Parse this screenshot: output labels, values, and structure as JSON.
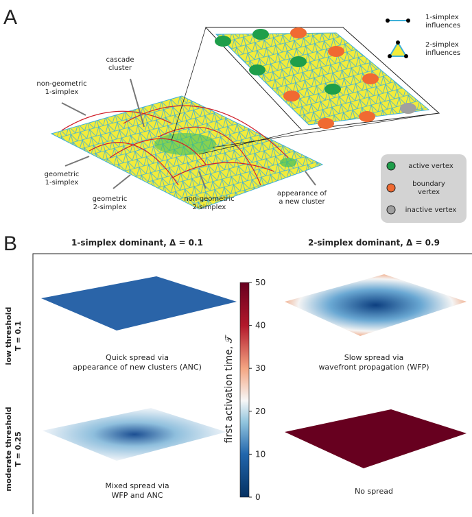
{
  "panel_a": {
    "label": "A",
    "influences": [
      {
        "lines": [
          "1-simplex",
          "influences"
        ]
      },
      {
        "lines": [
          "2-simplex",
          "influences"
        ]
      }
    ],
    "annotations": [
      {
        "lines": [
          "cascade",
          "cluster"
        ]
      },
      {
        "lines": [
          "non-geometric",
          "1-simplex"
        ]
      },
      {
        "lines": [
          "geometric",
          "1-simplex"
        ]
      },
      {
        "lines": [
          "geometric",
          "2-simplex"
        ]
      },
      {
        "lines": [
          "non-geometric",
          "2-simplex"
        ]
      },
      {
        "lines": [
          "appearance of",
          "a new cluster"
        ]
      }
    ],
    "vertex_legend": [
      {
        "lines": [
          "active vertex"
        ],
        "color": "#1e9e4a"
      },
      {
        "lines": [
          "boundary",
          "vertex"
        ],
        "color": "#f06a32"
      },
      {
        "lines": [
          "inactive vertex"
        ],
        "color": "#a0a0a0"
      }
    ]
  },
  "panel_b": {
    "label": "B",
    "columns": [
      "1-simplex dominant, Δ = 0.1",
      "2-simplex dominant, Δ = 0.9"
    ],
    "rows": [
      {
        "lines": [
          "low threshold",
          "T = 0.1"
        ]
      },
      {
        "lines": [
          "moderate threshold",
          "T = 0.25"
        ]
      }
    ],
    "captions": [
      {
        "lines": [
          "Quick spread via",
          "appearance of new clusters (ANC)"
        ]
      },
      {
        "lines": [
          "Slow spread via",
          "wavefront propagation (WFP)"
        ]
      },
      {
        "lines": [
          "Mixed spread via",
          "WFP and ANC"
        ]
      },
      {
        "lines": [
          "No spread"
        ]
      }
    ],
    "colorbar": {
      "label": "first activation time, 𝒯",
      "lim": [
        0,
        50
      ],
      "ticks": [
        0,
        10,
        20,
        30,
        40,
        50
      ]
    }
  }
}
